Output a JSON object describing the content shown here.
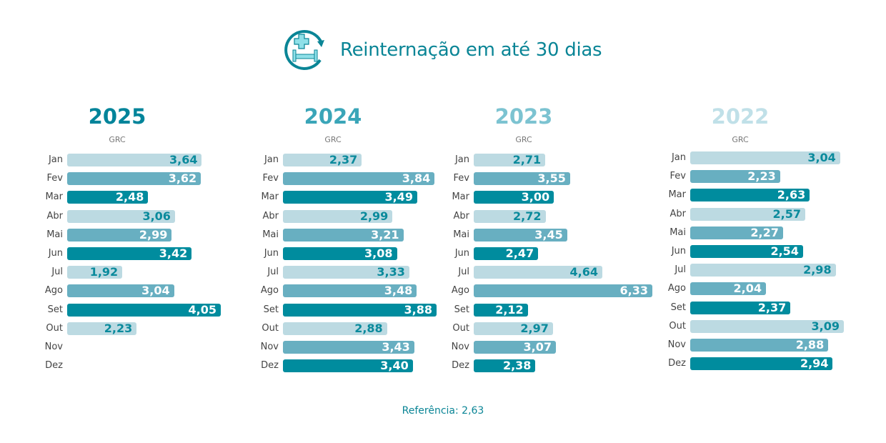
{
  "header": {
    "title": "Reinternação em até 30 dias",
    "icon": "bed-readmission-icon"
  },
  "colors": {
    "light": "#bcdae2",
    "mid": "#68afc1",
    "dark": "#008c9e",
    "label_on_light": "#0a8a9c"
  },
  "chart_data": [
    {
      "type": "bar",
      "title": "2025",
      "subtitle": "GRC",
      "title_color": "#00849a",
      "categories": [
        "Jan",
        "Fev",
        "Mar",
        "Abr",
        "Mai",
        "Jun",
        "Jul",
        "Ago",
        "Set",
        "Out",
        "Nov",
        "Dez"
      ],
      "values": [
        3.64,
        3.62,
        2.48,
        3.06,
        2.99,
        3.42,
        1.92,
        3.04,
        4.05,
        2.23,
        null,
        null
      ],
      "labels": [
        "3,64",
        "3,62",
        "2,48",
        "3,06",
        "2,99",
        "3,42",
        "1,92",
        "3,04",
        "4,05",
        "2,23",
        "",
        ""
      ]
    },
    {
      "type": "bar",
      "title": "2024",
      "subtitle": "GRC",
      "title_color": "#3aa5b8",
      "categories": [
        "Jan",
        "Fev",
        "Mar",
        "Abr",
        "Mai",
        "Jun",
        "Jul",
        "Ago",
        "Set",
        "Out",
        "Nov",
        "Dez"
      ],
      "values": [
        2.37,
        3.84,
        3.49,
        2.99,
        3.21,
        3.08,
        3.33,
        3.48,
        3.88,
        2.88,
        3.43,
        3.4
      ],
      "labels": [
        "2,37",
        "3,84",
        "3,49",
        "2,99",
        "3,21",
        "3,08",
        "3,33",
        "3,48",
        "3,88",
        "2,88",
        "3,43",
        "3,40"
      ]
    },
    {
      "type": "bar",
      "title": "2023",
      "subtitle": "GRC",
      "title_color": "#7cc3d1",
      "categories": [
        "Jan",
        "Fev",
        "Mar",
        "Abr",
        "Mai",
        "Jun",
        "Jul",
        "Ago",
        "Set",
        "Out",
        "Nov",
        "Dez"
      ],
      "values": [
        2.71,
        3.55,
        3.0,
        2.72,
        3.45,
        2.47,
        4.64,
        6.33,
        2.12,
        2.97,
        3.07,
        2.38
      ],
      "labels": [
        "2,71",
        "3,55",
        "3,00",
        "2,72",
        "3,45",
        "2,47",
        "4,64",
        "6,33",
        "2,12",
        "2,97",
        "3,07",
        "2,38"
      ]
    },
    {
      "type": "bar",
      "title": "2022",
      "subtitle": "GRC",
      "title_color": "#c0e0e8",
      "categories": [
        "Jan",
        "Fev",
        "Mar",
        "Abr",
        "Mai",
        "Jun",
        "Jul",
        "Ago",
        "Set",
        "Out",
        "Nov",
        "Dez"
      ],
      "values": [
        3.04,
        2.23,
        2.63,
        2.57,
        2.27,
        2.54,
        2.98,
        2.04,
        2.37,
        3.09,
        2.88,
        2.94
      ],
      "labels": [
        "3,04",
        "2,23",
        "2,63",
        "2,57",
        "2,27",
        "2,54",
        "2,98",
        "2,04",
        "2,37",
        "3,09",
        "2,88",
        "2,94"
      ]
    }
  ],
  "reference": {
    "label": "Referência: 2,63",
    "value": 2.63
  }
}
